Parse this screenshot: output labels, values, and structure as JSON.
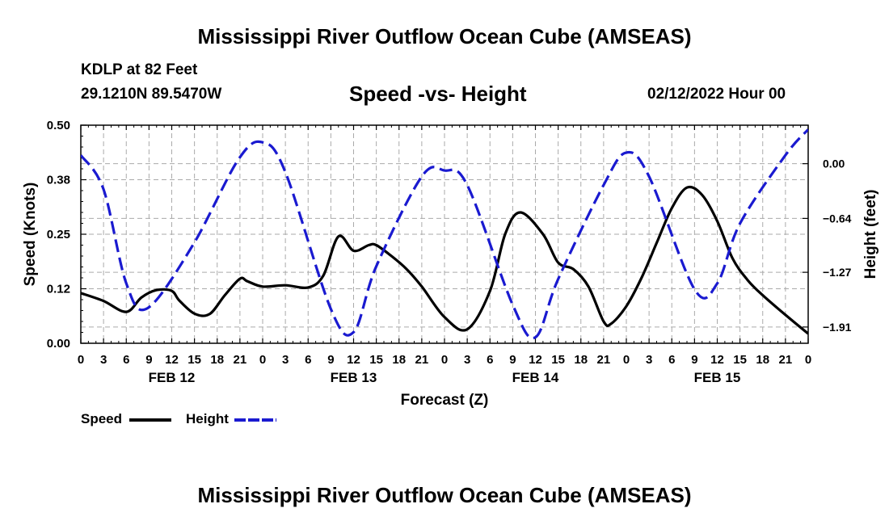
{
  "title": "Mississippi River Outflow Ocean Cube (AMSEAS)",
  "station": "KDLP at 82 Feet",
  "coords": "29.1210N  89.5470W",
  "subtitle": "Speed -vs- Height",
  "datetime": "02/12/2022 Hour 00",
  "legend": {
    "speed": "Speed",
    "height": "Height"
  },
  "colors": {
    "speed": "#000000",
    "height": "#1a1ad0",
    "grid": "#aaaaaa"
  },
  "chart_data": {
    "type": "line",
    "title": "Speed -vs- Height",
    "xlabel": "Forecast (Z)",
    "ylabel": "Speed (Knots)",
    "y2label": "Height (feet)",
    "xlim": [
      0,
      96
    ],
    "ylim": [
      0,
      0.5
    ],
    "y2lim": [
      -2.1,
      0.45
    ],
    "x_ticks": [
      0,
      3,
      6,
      9,
      12,
      15,
      18,
      21,
      24,
      27,
      30,
      33,
      36,
      39,
      42,
      45,
      48,
      51,
      54,
      57,
      60,
      63,
      66,
      69,
      72,
      75,
      78,
      81,
      84,
      87,
      90,
      93,
      96
    ],
    "x_tick_labels": [
      "0",
      "3",
      "6",
      "9",
      "12",
      "15",
      "18",
      "21",
      "0",
      "3",
      "6",
      "9",
      "12",
      "15",
      "18",
      "21",
      "0",
      "3",
      "6",
      "9",
      "12",
      "15",
      "18",
      "21",
      "0",
      "3",
      "6",
      "9",
      "12",
      "15",
      "18",
      "21",
      "0"
    ],
    "y_ticks": [
      0,
      0.125,
      0.25,
      0.375,
      0.5
    ],
    "y_tick_labels": [
      "0.00",
      "0.12",
      "0.25",
      "0.38",
      "0.50"
    ],
    "y2_ticks": [
      0,
      -0.64,
      -1.27,
      -1.91
    ],
    "y2_tick_labels": [
      "0.00",
      "−0.64",
      "−1.27",
      "−1.91"
    ],
    "date_labels": [
      {
        "x": 12,
        "label": "FEB 12"
      },
      {
        "x": 36,
        "label": "FEB 13"
      },
      {
        "x": 60,
        "label": "FEB 14"
      },
      {
        "x": 84,
        "label": "FEB 15"
      }
    ],
    "series": [
      {
        "name": "Speed",
        "axis": "left",
        "style": "solid",
        "x": [
          0,
          3,
          6,
          8,
          10,
          12,
          13,
          15,
          17,
          19,
          21,
          22,
          24,
          27,
          30,
          32,
          34,
          36,
          38,
          39,
          41,
          43,
          45,
          48,
          51,
          54,
          56,
          58,
          61,
          63,
          65,
          67,
          69,
          70,
          72,
          74,
          76,
          78,
          80,
          82,
          84,
          86,
          88,
          90,
          93,
          96
        ],
        "values": [
          0.115,
          0.097,
          0.072,
          0.105,
          0.122,
          0.12,
          0.098,
          0.068,
          0.067,
          0.11,
          0.148,
          0.142,
          0.13,
          0.133,
          0.128,
          0.155,
          0.245,
          0.212,
          0.225,
          0.225,
          0.2,
          0.17,
          0.13,
          0.06,
          0.032,
          0.12,
          0.25,
          0.3,
          0.25,
          0.185,
          0.17,
          0.13,
          0.05,
          0.045,
          0.085,
          0.15,
          0.23,
          0.31,
          0.357,
          0.34,
          0.28,
          0.195,
          0.145,
          0.11,
          0.065,
          0.022
        ]
      },
      {
        "name": "Height",
        "axis": "right",
        "style": "dashed",
        "x": [
          0,
          3,
          6,
          8.8,
          14.8,
          20.8,
          24,
          27,
          33,
          36,
          39,
          45,
          48,
          51,
          57,
          60,
          63,
          69,
          72,
          75,
          81,
          84,
          87,
          93,
          96
        ],
        "values": [
          0.1,
          -0.3,
          -1.4,
          -1.69,
          -0.95,
          0.05,
          0.25,
          -0.1,
          -1.7,
          -1.97,
          -1.2,
          -0.15,
          -0.08,
          -0.25,
          -1.65,
          -2.03,
          -1.35,
          -0.25,
          0.13,
          -0.15,
          -1.47,
          -1.4,
          -0.7,
          0.1,
          0.4
        ]
      }
    ]
  }
}
